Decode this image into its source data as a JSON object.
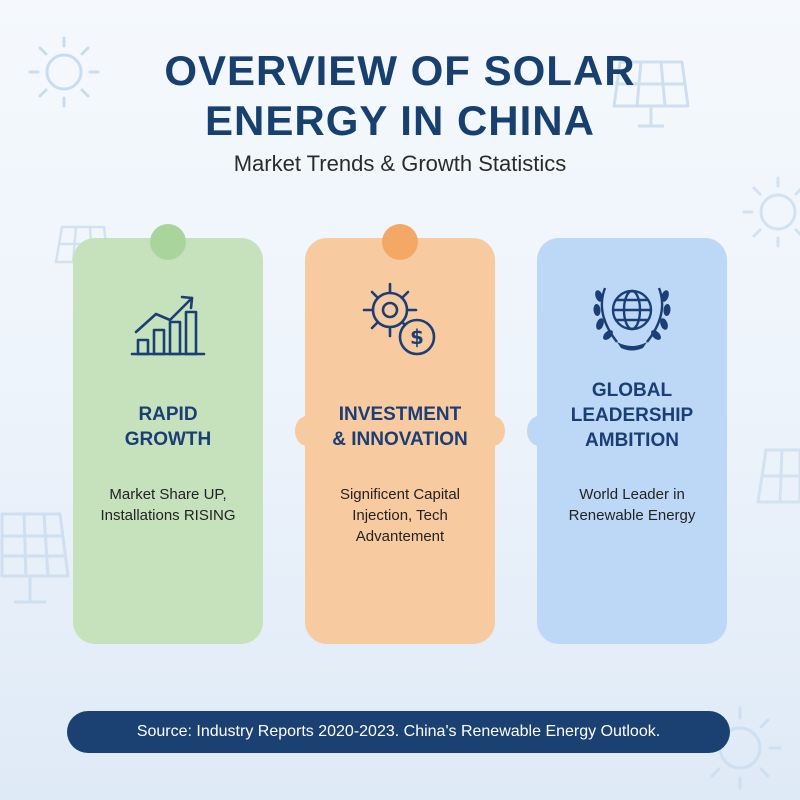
{
  "title": {
    "line1": "OVERVIEW OF SOLAR",
    "line2": "ENERGY IN CHINA"
  },
  "subtitle": "Market Trends & Growth Statistics",
  "cards": [
    {
      "heading_lines": [
        "RAPID",
        "GROWTH"
      ],
      "body_lines": [
        "Market Share UP,",
        "Installations RISING"
      ],
      "icon": "growth-chart-icon",
      "color": "#c6e2bd"
    },
    {
      "heading_lines": [
        "INVESTMENT",
        "& INNOVATION"
      ],
      "body_lines": [
        "Significent Capital",
        "Injection, Tech",
        "Advantement"
      ],
      "icon": "gear-dollar-icon",
      "color": "#f8caa0"
    },
    {
      "heading_lines": [
        "GLOBAL",
        "LEADERSHIP",
        "AMBITION"
      ],
      "body_lines": [
        "World Leader in",
        "Renewable Energy"
      ],
      "icon": "globe-laurel-icon",
      "color": "#bcd8f6"
    }
  ],
  "footer": "Source: Industry Reports 2020-2023. China's Renewable Energy Outlook.",
  "colors": {
    "title": "#18406f",
    "heading": "#1b3f74",
    "footer_bg": "#1a4172"
  }
}
